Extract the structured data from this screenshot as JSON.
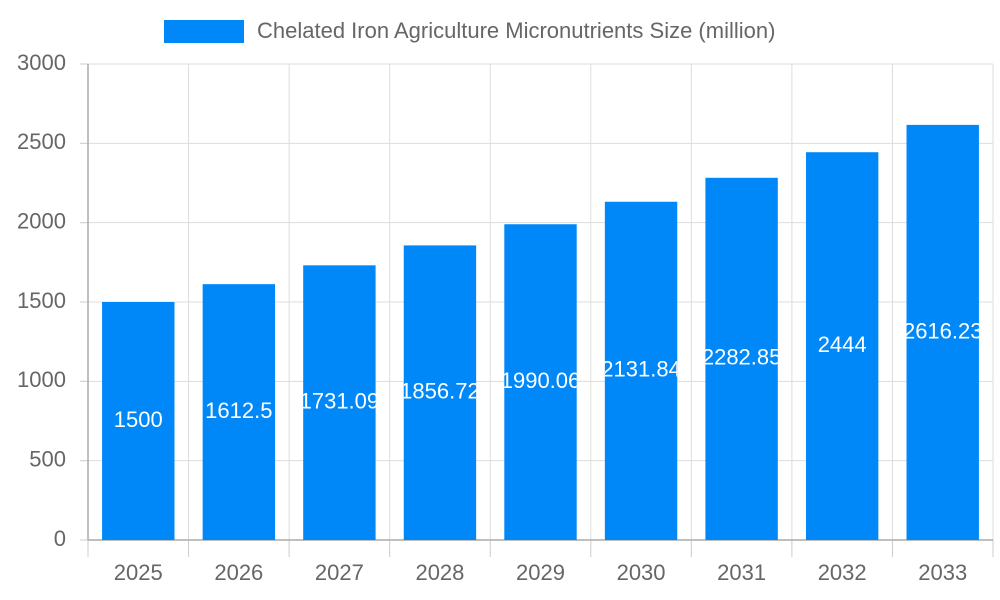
{
  "chart_data": {
    "type": "bar",
    "categories": [
      "2025",
      "2026",
      "2027",
      "2028",
      "2029",
      "2030",
      "2031",
      "2032",
      "2033"
    ],
    "series": [
      {
        "name": "Chelated Iron Agriculture Micronutrients Size (million)",
        "color": "#0088f8",
        "values": [
          1500,
          1612.5,
          1731.09,
          1856.72,
          1990.06,
          2131.84,
          2282.85,
          2444,
          2616.23
        ]
      }
    ],
    "ylim": [
      0,
      3000
    ],
    "yticks": [
      0,
      500,
      1000,
      1500,
      2000,
      2500,
      3000
    ],
    "grid": true,
    "legend": "top",
    "data_labels": true
  }
}
